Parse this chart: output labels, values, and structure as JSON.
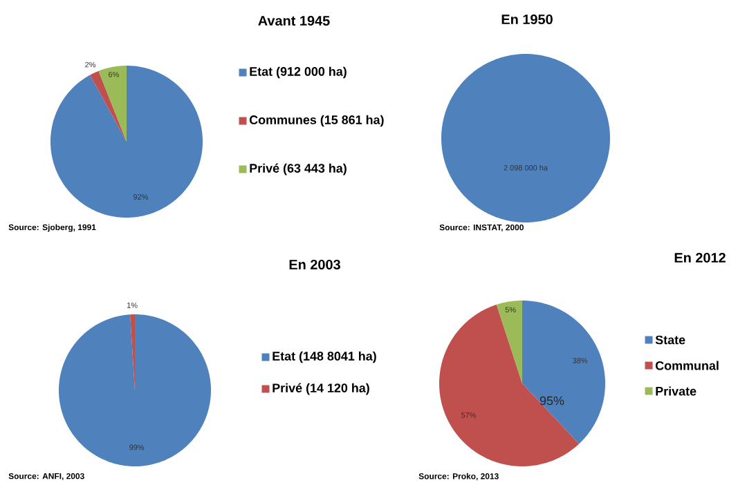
{
  "chart_data": [
    {
      "type": "pie",
      "title": "Avant 1945",
      "categories": [
        "Etat (912 000 ha)",
        "Communes (15 861 ha)",
        "Privé (63 443 ha)"
      ],
      "values": [
        92,
        2,
        6
      ],
      "colors": [
        "#4f81bd",
        "#c0504d",
        "#9bbb59"
      ],
      "value_labels": [
        "92%",
        "2%",
        "6%"
      ],
      "legend": "right",
      "annotations": [
        "Source: Sjoberg, 1991"
      ]
    },
    {
      "type": "pie",
      "title": "En 1950",
      "categories": [
        null
      ],
      "values": [
        2098000
      ],
      "colors": [
        "#4f81bd"
      ],
      "value_labels": [
        "2 098 000 ha"
      ],
      "annotations": [
        "Source: INSTAT, 2000"
      ]
    },
    {
      "type": "pie",
      "title": "En 2003",
      "categories": [
        "Etat (148 8041 ha)",
        "Privé (14 120 ha)"
      ],
      "values": [
        99,
        1
      ],
      "colors": [
        "#4f81bd",
        "#c0504d"
      ],
      "value_labels": [
        "99%",
        "1%"
      ],
      "legend": "right",
      "annotations": [
        "Source: ANFI, 2003"
      ]
    },
    {
      "type": "pie",
      "title": "En 2012",
      "categories": [
        "State",
        "Communal",
        "Private"
      ],
      "values": [
        38,
        57,
        5
      ],
      "colors": [
        "#4f81bd",
        "#c0504d",
        "#9bbb59"
      ],
      "value_labels": [
        "38%",
        "57%",
        "5%"
      ],
      "legend": "right",
      "annotations": [
        "Source: Proko, 2013",
        "95%"
      ]
    }
  ]
}
